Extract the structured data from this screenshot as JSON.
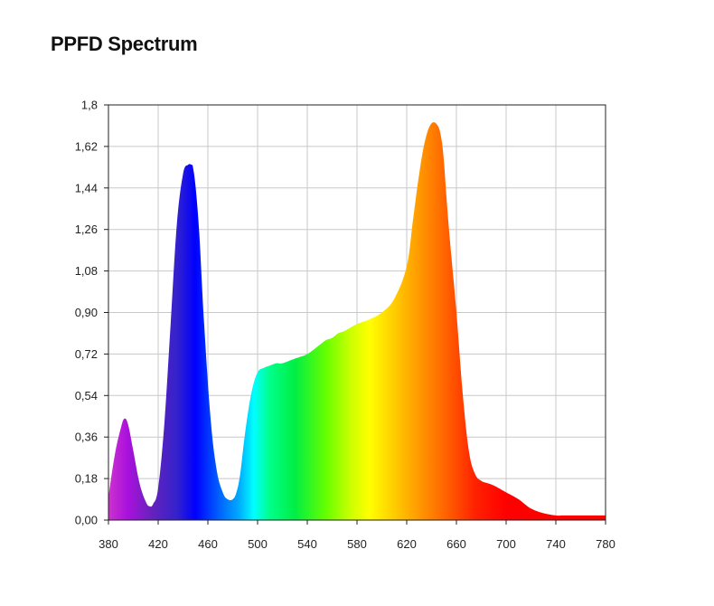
{
  "title": "PPFD Spectrum",
  "chart_data": {
    "type": "area",
    "title": "PPFD Spectrum",
    "xlabel": "",
    "ylabel": "",
    "xlim": [
      380,
      780
    ],
    "ylim": [
      0,
      1.8
    ],
    "grid": true,
    "legend": "none",
    "fill": "spectral-gradient",
    "x_ticks": [
      380,
      420,
      460,
      500,
      540,
      580,
      620,
      660,
      700,
      740,
      780
    ],
    "x_tick_labels": [
      "380",
      "420",
      "460",
      "500",
      "540",
      "580",
      "620",
      "660",
      "700",
      "740",
      "780"
    ],
    "y_ticks": [
      0,
      0.18,
      0.36,
      0.54,
      0.72,
      0.9,
      1.08,
      1.26,
      1.44,
      1.62,
      1.8
    ],
    "y_tick_labels": [
      "0,00",
      "0,18",
      "0,36",
      "0,54",
      "0,72",
      "0,90",
      "1,08",
      "1,26",
      "1,44",
      "1,62",
      "1,8"
    ],
    "x": [
      380,
      385,
      390,
      393,
      396,
      400,
      405,
      410,
      413,
      416,
      420,
      425,
      430,
      435,
      440,
      444,
      447,
      448,
      450,
      453,
      457,
      462,
      467,
      472,
      476,
      480,
      483,
      486,
      490,
      495,
      500,
      505,
      510,
      515,
      520,
      530,
      540,
      550,
      555,
      560,
      565,
      570,
      580,
      590,
      600,
      610,
      620,
      625,
      630,
      635,
      640,
      645,
      648,
      650,
      652,
      655,
      660,
      665,
      670,
      675,
      680,
      685,
      690,
      700,
      710,
      720,
      730,
      740,
      745,
      750,
      760,
      770,
      780
    ],
    "values": [
      0.1,
      0.28,
      0.4,
      0.44,
      0.41,
      0.3,
      0.16,
      0.08,
      0.06,
      0.07,
      0.14,
      0.42,
      0.85,
      1.28,
      1.5,
      1.54,
      1.54,
      1.53,
      1.45,
      1.25,
      0.85,
      0.45,
      0.22,
      0.12,
      0.09,
      0.09,
      0.12,
      0.2,
      0.38,
      0.55,
      0.64,
      0.66,
      0.67,
      0.68,
      0.68,
      0.7,
      0.72,
      0.76,
      0.78,
      0.79,
      0.81,
      0.82,
      0.85,
      0.87,
      0.9,
      0.96,
      1.1,
      1.3,
      1.5,
      1.65,
      1.72,
      1.71,
      1.65,
      1.55,
      1.4,
      1.2,
      0.9,
      0.55,
      0.3,
      0.2,
      0.17,
      0.16,
      0.15,
      0.12,
      0.09,
      0.05,
      0.03,
      0.02,
      0.02,
      0.02,
      0.02,
      0.02,
      0.02
    ],
    "colors": {
      "grid": "#c8c8c8",
      "axis": "#222222",
      "gradient": [
        [
          380,
          "#cc33cc"
        ],
        [
          395,
          "#aa11dd"
        ],
        [
          415,
          "#6622bb"
        ],
        [
          435,
          "#3322cc"
        ],
        [
          450,
          "#0000ff"
        ],
        [
          470,
          "#0066ff"
        ],
        [
          485,
          "#00aaff"
        ],
        [
          497,
          "#00ffff"
        ],
        [
          510,
          "#00ff88"
        ],
        [
          530,
          "#00ee44"
        ],
        [
          555,
          "#66ff00"
        ],
        [
          575,
          "#ccff00"
        ],
        [
          590,
          "#ffff00"
        ],
        [
          610,
          "#ffcc00"
        ],
        [
          630,
          "#ff9900"
        ],
        [
          650,
          "#ff6600"
        ],
        [
          675,
          "#ff2200"
        ],
        [
          700,
          "#ff0000"
        ],
        [
          780,
          "#ff0000"
        ]
      ]
    }
  }
}
